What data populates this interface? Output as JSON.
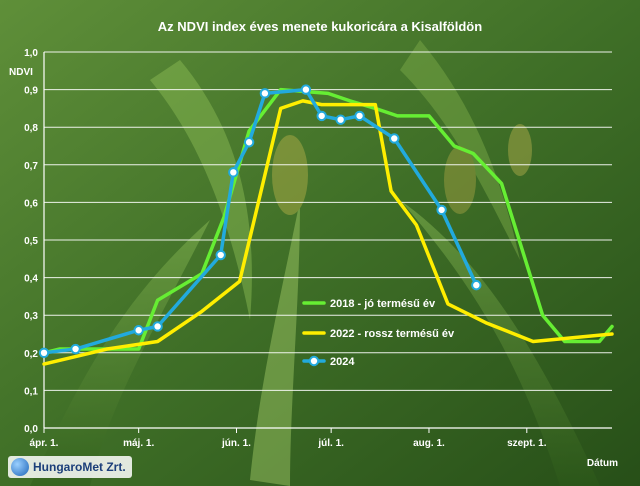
{
  "chart_data": {
    "type": "line",
    "title": "Az NDVI index éves menete kukoricára a Kisalföldön",
    "ylabel": "NDVI",
    "xlabel": "Dátum",
    "ylim": [
      0,
      1
    ],
    "yticks": [
      "0,0",
      "0,1",
      "0,2",
      "0,3",
      "0,4",
      "0,5",
      "0,6",
      "0,7",
      "0,8",
      "0,9",
      "1,0"
    ],
    "xlim": [
      0,
      180
    ],
    "xticks": [
      {
        "label": "ápr. 1.",
        "day": 0
      },
      {
        "label": "máj. 1.",
        "day": 30
      },
      {
        "label": "jún. 1.",
        "day": 61
      },
      {
        "label": "júl. 1.",
        "day": 91
      },
      {
        "label": "aug. 1.",
        "day": 122
      },
      {
        "label": "szept. 1.",
        "day": 153
      }
    ],
    "grid": true,
    "legend_position": "right",
    "series": [
      {
        "name": "2018 - jó termésű év",
        "color": "#66ee33",
        "marker": false,
        "x": [
          0,
          5,
          30,
          36,
          50,
          57,
          65,
          75,
          90,
          97,
          105,
          112,
          122,
          130,
          136,
          145,
          158,
          165,
          176,
          180
        ],
        "y": [
          0.2,
          0.21,
          0.21,
          0.34,
          0.41,
          0.56,
          0.79,
          0.9,
          0.89,
          0.87,
          0.85,
          0.83,
          0.83,
          0.75,
          0.73,
          0.65,
          0.3,
          0.23,
          0.23,
          0.27
        ]
      },
      {
        "name": "2022 - rossz termésű év",
        "color": "#ffee00",
        "marker": false,
        "x": [
          0,
          10,
          20,
          36,
          50,
          62,
          75,
          82,
          88,
          105,
          110,
          118,
          128,
          140,
          155,
          180
        ],
        "y": [
          0.17,
          0.19,
          0.21,
          0.23,
          0.31,
          0.39,
          0.85,
          0.87,
          0.86,
          0.86,
          0.63,
          0.54,
          0.33,
          0.28,
          0.23,
          0.25
        ]
      },
      {
        "name": "2024",
        "color": "#22aadd",
        "marker": true,
        "x": [
          0,
          10,
          30,
          36,
          56,
          60,
          65,
          70,
          83,
          88,
          94,
          100,
          111,
          126,
          137
        ],
        "y": [
          0.2,
          0.21,
          0.26,
          0.27,
          0.46,
          0.68,
          0.76,
          0.89,
          0.9,
          0.83,
          0.82,
          0.83,
          0.77,
          0.58,
          0.38
        ]
      }
    ]
  },
  "logo": {
    "text": "HungaroMet Zrt."
  }
}
